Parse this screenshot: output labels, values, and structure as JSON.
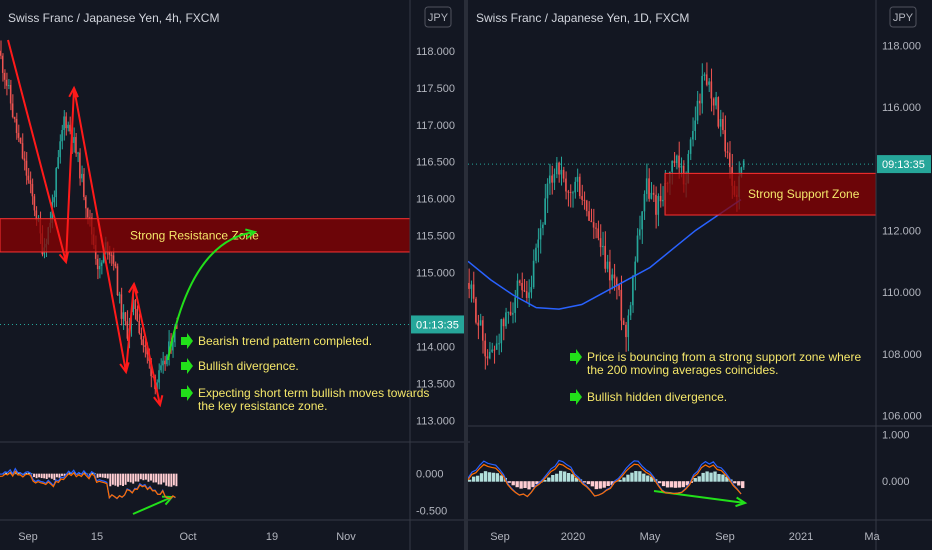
{
  "colors": {
    "background": "#131722",
    "grid_border": "#363a45",
    "candle_up": "#26a69a",
    "candle_down": "#ef5350",
    "ma_line": "#2962ff",
    "zone_fill": "#8b0000",
    "zone_border": "#ff3030",
    "annot_red": "#ff1a1a",
    "annot_green": "#22e01a",
    "note_text": "#f5e76a",
    "timer_bg": "#26a69a"
  },
  "left": {
    "title": "Swiss Franc / Japanese Yen, 4h, FXCM",
    "currency": "JPY",
    "timer": "01:13:35",
    "zone_label": "Strong Resistance Zone",
    "notes": [
      {
        "lines": [
          "Bearish trend pattern completed."
        ]
      },
      {
        "lines": [
          "Bullish divergence."
        ]
      },
      {
        "lines": [
          "Expecting short term bullish moves towards",
          "the key resistance zone."
        ]
      }
    ]
  },
  "right": {
    "title": "Swiss Franc / Japanese Yen, 1D, FXCM",
    "currency": "JPY",
    "timer": "09:13:35",
    "zone_label": "Strong Support Zone",
    "notes": [
      {
        "lines": [
          "Price is bouncing from a strong support zone where",
          "the 200 moving averages coincides."
        ]
      },
      {
        "lines": [
          "Bullish hidden divergence."
        ]
      }
    ]
  },
  "chart_data": [
    {
      "type": "candlestick",
      "title": "Swiss Franc / Japanese Yen, 4h, FXCM",
      "ylim": [
        112.9,
        118.2
      ],
      "y_ticks": [
        "118.000",
        "117.500",
        "117.000",
        "116.500",
        "116.000",
        "115.500",
        "115.000",
        "114.000",
        "113.500",
        "113.000"
      ],
      "y_tick_values": [
        118.0,
        117.5,
        117.0,
        116.5,
        116.0,
        115.5,
        115.0,
        114.0,
        113.5,
        113.0
      ],
      "x_ticks": [
        "Sep",
        "15",
        "Oct",
        "19",
        "Nov"
      ],
      "current_price_label": "01:13:35",
      "current_price": 114.3,
      "price_path": [
        117.9,
        117.5,
        117.0,
        116.6,
        116.2,
        115.8,
        115.3,
        115.7,
        116.4,
        117.1,
        116.9,
        116.5,
        116.0,
        115.5,
        115.0,
        115.4,
        115.2,
        114.5,
        114.2,
        114.6,
        114.1,
        113.8,
        113.5,
        113.7,
        114.0,
        114.3
      ],
      "resistance_zone": [
        115.28,
        115.73
      ],
      "oscillator": {
        "ylim": [
          -0.55,
          0.35
        ],
        "y_ticks": [
          "0.000",
          "-0.500"
        ],
        "y_tick_values": [
          0.0,
          -0.5
        ]
      }
    },
    {
      "type": "candlestick",
      "title": "Swiss Franc / Japanese Yen, 1D, FXCM",
      "ylim": [
        105.6,
        118.3
      ],
      "y_ticks": [
        "118.000",
        "116.000",
        "114.000",
        "112.000",
        "110.000",
        "108.000",
        "106.000"
      ],
      "y_tick_values": [
        118,
        116,
        114,
        112,
        110,
        108,
        106
      ],
      "x_ticks": [
        "Sep",
        "2020",
        "May",
        "Sep",
        "2021",
        "Ma"
      ],
      "current_price_label": "09:13:35",
      "current_price": 114.15,
      "price_path": [
        110.2,
        109.0,
        107.8,
        108.6,
        109.3,
        110.1,
        109.5,
        111.5,
        113.2,
        114.3,
        112.9,
        113.6,
        112.6,
        111.8,
        110.8,
        110.3,
        108.6,
        111.4,
        113.5,
        112.8,
        113.4,
        114.2,
        113.6,
        115.6,
        117.1,
        116.3,
        114.8,
        113.1,
        114.1
      ],
      "moving_average": [
        111.0,
        110.4,
        109.9,
        109.5,
        109.45,
        109.6,
        110.0,
        110.4,
        110.8,
        111.4,
        112.0,
        112.5,
        113.0
      ],
      "support_zone": [
        112.5,
        113.85
      ],
      "oscillator": {
        "ylim": [
          -0.7,
          1.05
        ],
        "y_ticks": [
          "1.000",
          "0.000"
        ],
        "y_tick_values": [
          1.0,
          0.0
        ]
      }
    }
  ]
}
